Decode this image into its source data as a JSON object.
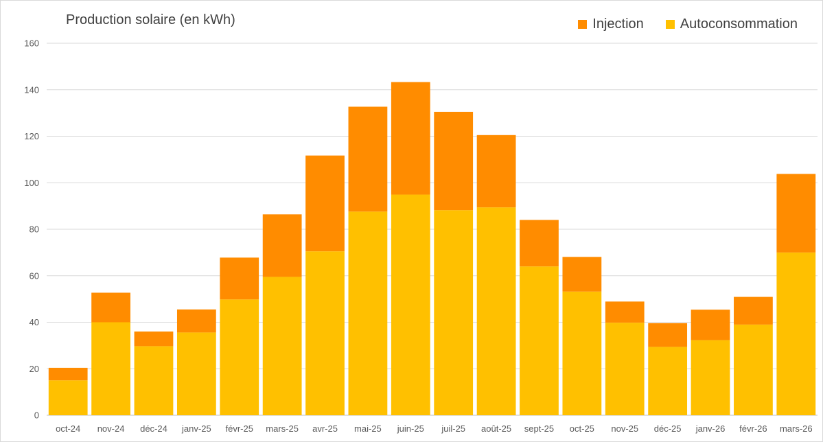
{
  "chart_data": {
    "type": "bar",
    "stacked": true,
    "title": "Production solaire (en kWh)",
    "xlabel": "",
    "ylabel": "",
    "ylim": [
      0,
      160
    ],
    "yticks": [
      0,
      20,
      40,
      60,
      80,
      100,
      120,
      140,
      160
    ],
    "grid": true,
    "legend_position": "top-right",
    "categories": [
      "oct-24",
      "nov-24",
      "déc-24",
      "janv-25",
      "févr-25",
      "mars-25",
      "avr-25",
      "mai-25",
      "juin-25",
      "juil-25",
      "août-25",
      "sept-25",
      "oct-25",
      "nov-25",
      "déc-25",
      "janv-26",
      "févr-26",
      "mars-26"
    ],
    "series": [
      {
        "name": "Autoconsommation",
        "color": "#FFC000",
        "values": [
          15,
          40,
          29.7,
          35.6,
          49.8,
          59.5,
          70.5,
          87.6,
          94.9,
          88.2,
          89.4,
          64,
          53.2,
          39.8,
          29.4,
          32.3,
          39,
          70
        ]
      },
      {
        "name": "Injection",
        "color": "#FF8C00",
        "values": [
          5.4,
          12.7,
          6.3,
          9.9,
          18,
          26.9,
          41.2,
          45.1,
          48.4,
          42.3,
          31.1,
          20,
          14.9,
          9.1,
          10.2,
          13.1,
          11.9,
          33.8
        ]
      }
    ],
    "legend_order": [
      "Injection",
      "Autoconsommation"
    ]
  }
}
